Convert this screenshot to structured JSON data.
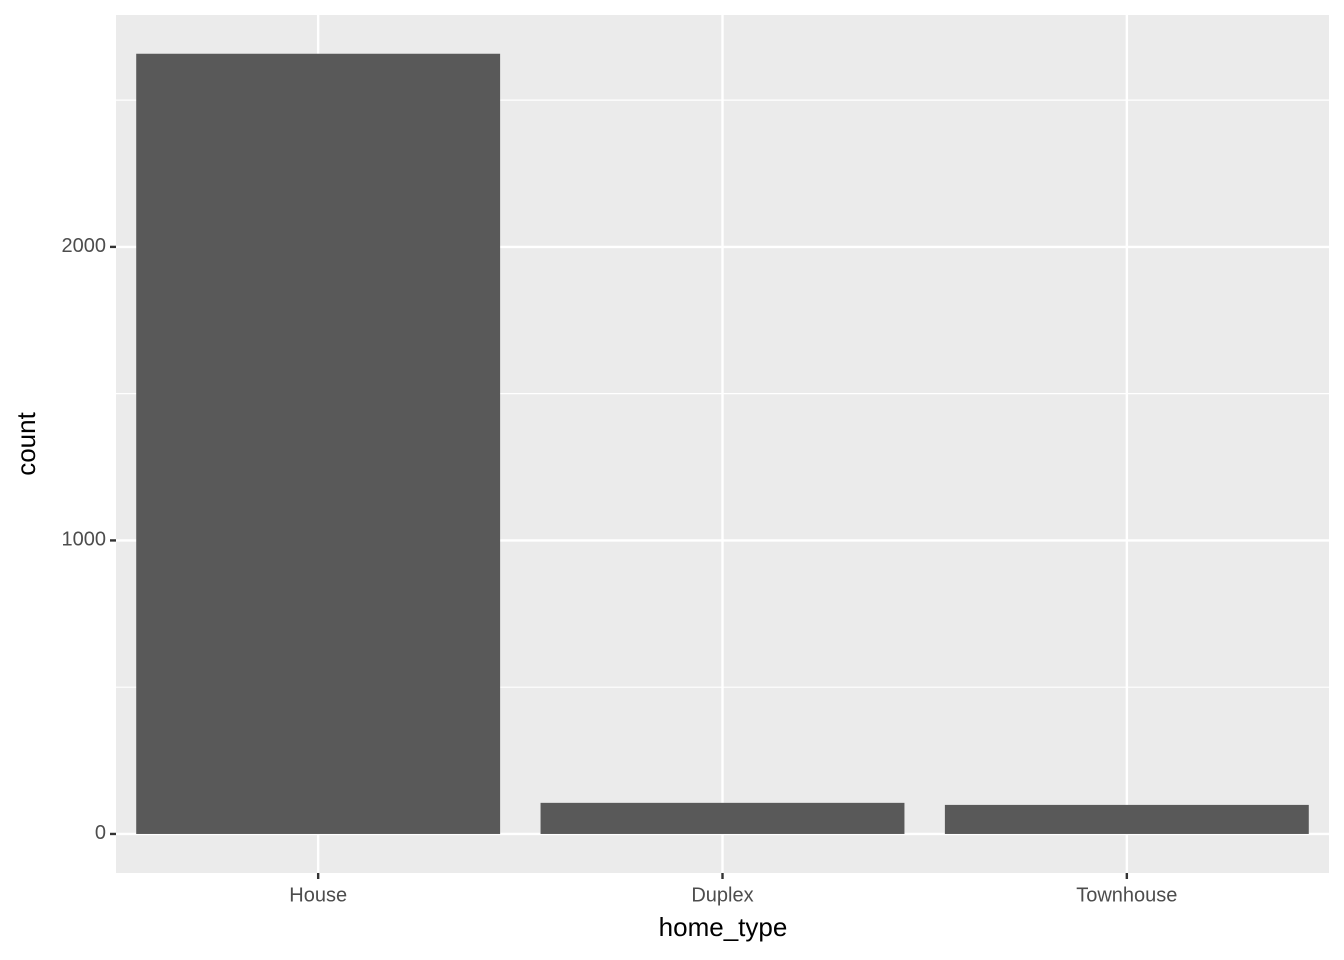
{
  "chart_data": {
    "type": "bar",
    "x_label": "home_type",
    "y_label": "count",
    "categories": [
      "House",
      "Duplex",
      "Townhouse"
    ],
    "values": [
      2658,
      106,
      99
    ],
    "color": "#595959",
    "ylim": [
      -133,
      2790
    ],
    "yticks": [
      0,
      1000,
      2000
    ],
    "minor_yticks": [
      500,
      1500,
      2500
    ],
    "grid": true
  }
}
